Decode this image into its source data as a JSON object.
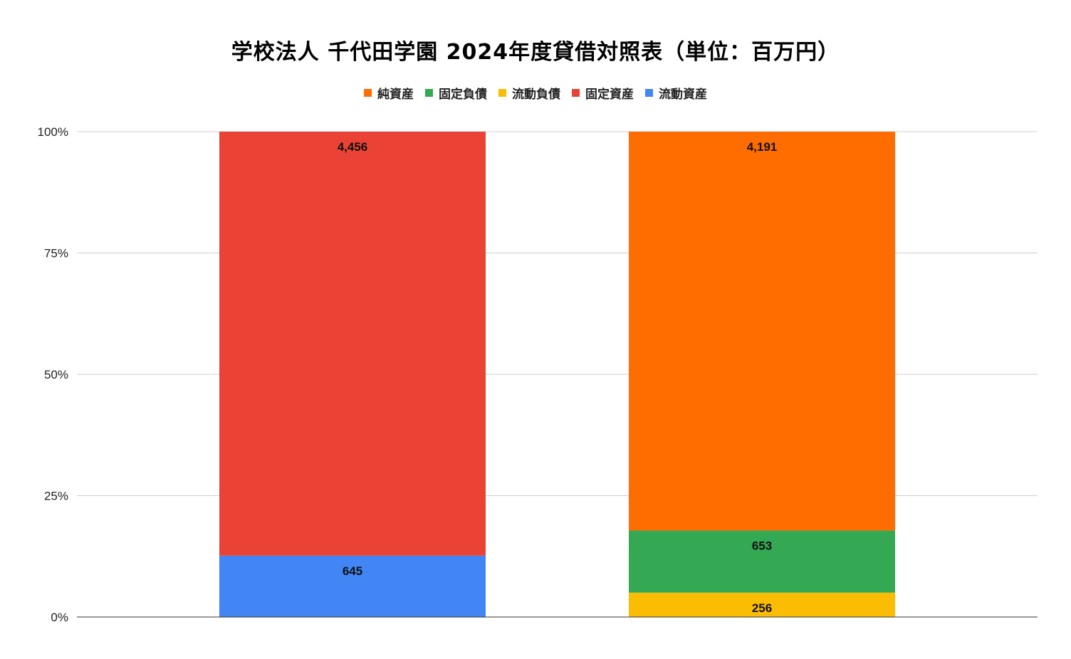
{
  "chart_data": {
    "type": "bar",
    "stacked": "percent",
    "title": "学校法人 千代田学園  2024年度貸借対照表（単位：百万円）",
    "xlabel": "",
    "ylabel": "",
    "categories": [
      "",
      ""
    ],
    "legend": {
      "position": "top"
    },
    "legend_order": [
      "純資産",
      "固定負債",
      "流動負債",
      "固定資産",
      "流動資産"
    ],
    "series": [
      {
        "name": "流動資産",
        "color": "#4285F4",
        "values": [
          645,
          0
        ]
      },
      {
        "name": "固定資産",
        "color": "#EA4335",
        "values": [
          4456,
          0
        ]
      },
      {
        "name": "流動負債",
        "color": "#FBBC04",
        "values": [
          0,
          256
        ]
      },
      {
        "name": "固定負債",
        "color": "#34A853",
        "values": [
          0,
          653
        ]
      },
      {
        "name": "純資産",
        "color": "#FF6D01",
        "values": [
          0,
          4191
        ]
      }
    ],
    "yticks": [
      "0%",
      "25%",
      "50%",
      "75%",
      "100%"
    ],
    "ylim": [
      0,
      100
    ],
    "grid": true
  }
}
